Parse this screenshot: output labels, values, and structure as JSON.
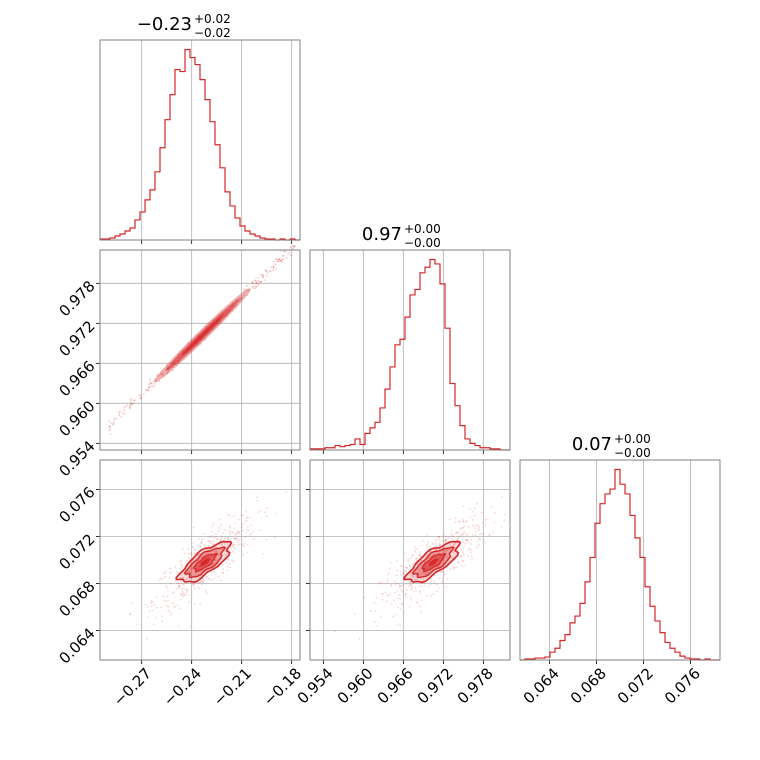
{
  "figure": {
    "kind": "corner-plot",
    "color": "#d62728",
    "grid": true
  },
  "chart_data": [
    {
      "type": "histogram",
      "parameter_index": 0,
      "title": {
        "value": "−0.23",
        "plus": "+0.02",
        "minus": "−0.02"
      },
      "xlim": [
        -0.295,
        -0.175
      ],
      "xticks": [
        -0.27,
        -0.24,
        -0.21,
        -0.18
      ],
      "xtick_labels": [
        "−0.27",
        "−0.24",
        "−0.21",
        "−0.18"
      ],
      "bins_start": -0.295,
      "bin_width": 0.003,
      "counts": [
        1,
        1,
        2,
        4,
        6,
        9,
        12,
        20,
        28,
        40,
        50,
        68,
        92,
        120,
        145,
        170,
        168,
        190,
        182,
        175,
        160,
        140,
        118,
        95,
        72,
        48,
        34,
        22,
        14,
        9,
        6,
        4,
        2,
        1,
        1,
        0,
        1,
        0,
        1,
        0
      ]
    },
    {
      "type": "scatter",
      "x_param": 0,
      "y_param": 1,
      "xlim": [
        -0.295,
        -0.175
      ],
      "ylim": [
        0.953,
        0.983
      ],
      "xticks": [
        -0.27,
        -0.24,
        -0.21,
        -0.18
      ],
      "yticks": [
        0.954,
        0.96,
        0.966,
        0.972,
        0.978
      ],
      "ytick_labels": [
        "0.954",
        "0.960",
        "0.966",
        "0.972",
        "0.978"
      ],
      "relation": {
        "slope": 0.244,
        "intercept": 1.0272,
        "spread": 0.0004
      },
      "contour_extent_x": [
        -0.262,
        -0.205
      ]
    },
    {
      "type": "histogram",
      "parameter_index": 1,
      "title": {
        "value": "0.97",
        "plus": "+0.00",
        "minus": "−0.00"
      },
      "xlim": [
        0.952,
        0.982
      ],
      "xticks": [
        0.954,
        0.96,
        0.966,
        0.972,
        0.978
      ],
      "xtick_labels": [
        "0.954",
        "0.960",
        "0.966",
        "0.972",
        "0.978"
      ],
      "bins_start": 0.952,
      "bin_width": 0.00075,
      "counts": [
        1,
        1,
        1,
        2,
        2,
        4,
        3,
        4,
        5,
        10,
        5,
        15,
        20,
        25,
        38,
        55,
        75,
        95,
        100,
        120,
        140,
        145,
        160,
        165,
        172,
        168,
        150,
        110,
        60,
        40,
        22,
        10,
        6,
        4,
        2,
        2,
        1,
        1,
        0,
        0
      ]
    },
    {
      "type": "scatter",
      "x_param": 0,
      "y_param": 2,
      "xlim": [
        -0.295,
        -0.175
      ],
      "ylim": [
        0.0615,
        0.0785
      ],
      "xticks": [
        -0.27,
        -0.24,
        -0.21,
        -0.18
      ],
      "xtick_labels": [
        "−0.27",
        "−0.24",
        "−0.21",
        "−0.18"
      ],
      "yticks": [
        0.064,
        0.068,
        0.072,
        0.076
      ],
      "ytick_labels": [
        "0.064",
        "0.068",
        "0.072",
        "0.076"
      ],
      "center": [
        -0.232,
        0.0698
      ]
    },
    {
      "type": "scatter",
      "x_param": 1,
      "y_param": 2,
      "xlim": [
        0.952,
        0.982
      ],
      "ylim": [
        0.0615,
        0.0785
      ],
      "xticks": [
        0.954,
        0.96,
        0.966,
        0.972,
        0.978
      ],
      "xtick_labels": [
        "0.954",
        "0.960",
        "0.966",
        "0.972",
        "0.978"
      ],
      "yticks": [
        0.064,
        0.068,
        0.072,
        0.076
      ],
      "center": [
        0.9705,
        0.0698
      ]
    },
    {
      "type": "histogram",
      "parameter_index": 2,
      "title": {
        "value": "0.07",
        "plus": "+0.00",
        "minus": "−0.00"
      },
      "xlim": [
        0.0615,
        0.0785
      ],
      "xticks": [
        0.064,
        0.068,
        0.072,
        0.076
      ],
      "xtick_labels": [
        "0.064",
        "0.068",
        "0.072",
        "0.076"
      ],
      "bins_start": 0.0615,
      "bin_width": 0.000425,
      "counts": [
        0,
        1,
        1,
        2,
        2,
        3,
        8,
        12,
        20,
        26,
        38,
        45,
        58,
        80,
        105,
        140,
        160,
        170,
        175,
        195,
        180,
        170,
        148,
        125,
        105,
        75,
        55,
        40,
        28,
        18,
        12,
        8,
        4,
        2,
        1,
        1,
        0,
        1,
        0,
        0
      ]
    }
  ]
}
